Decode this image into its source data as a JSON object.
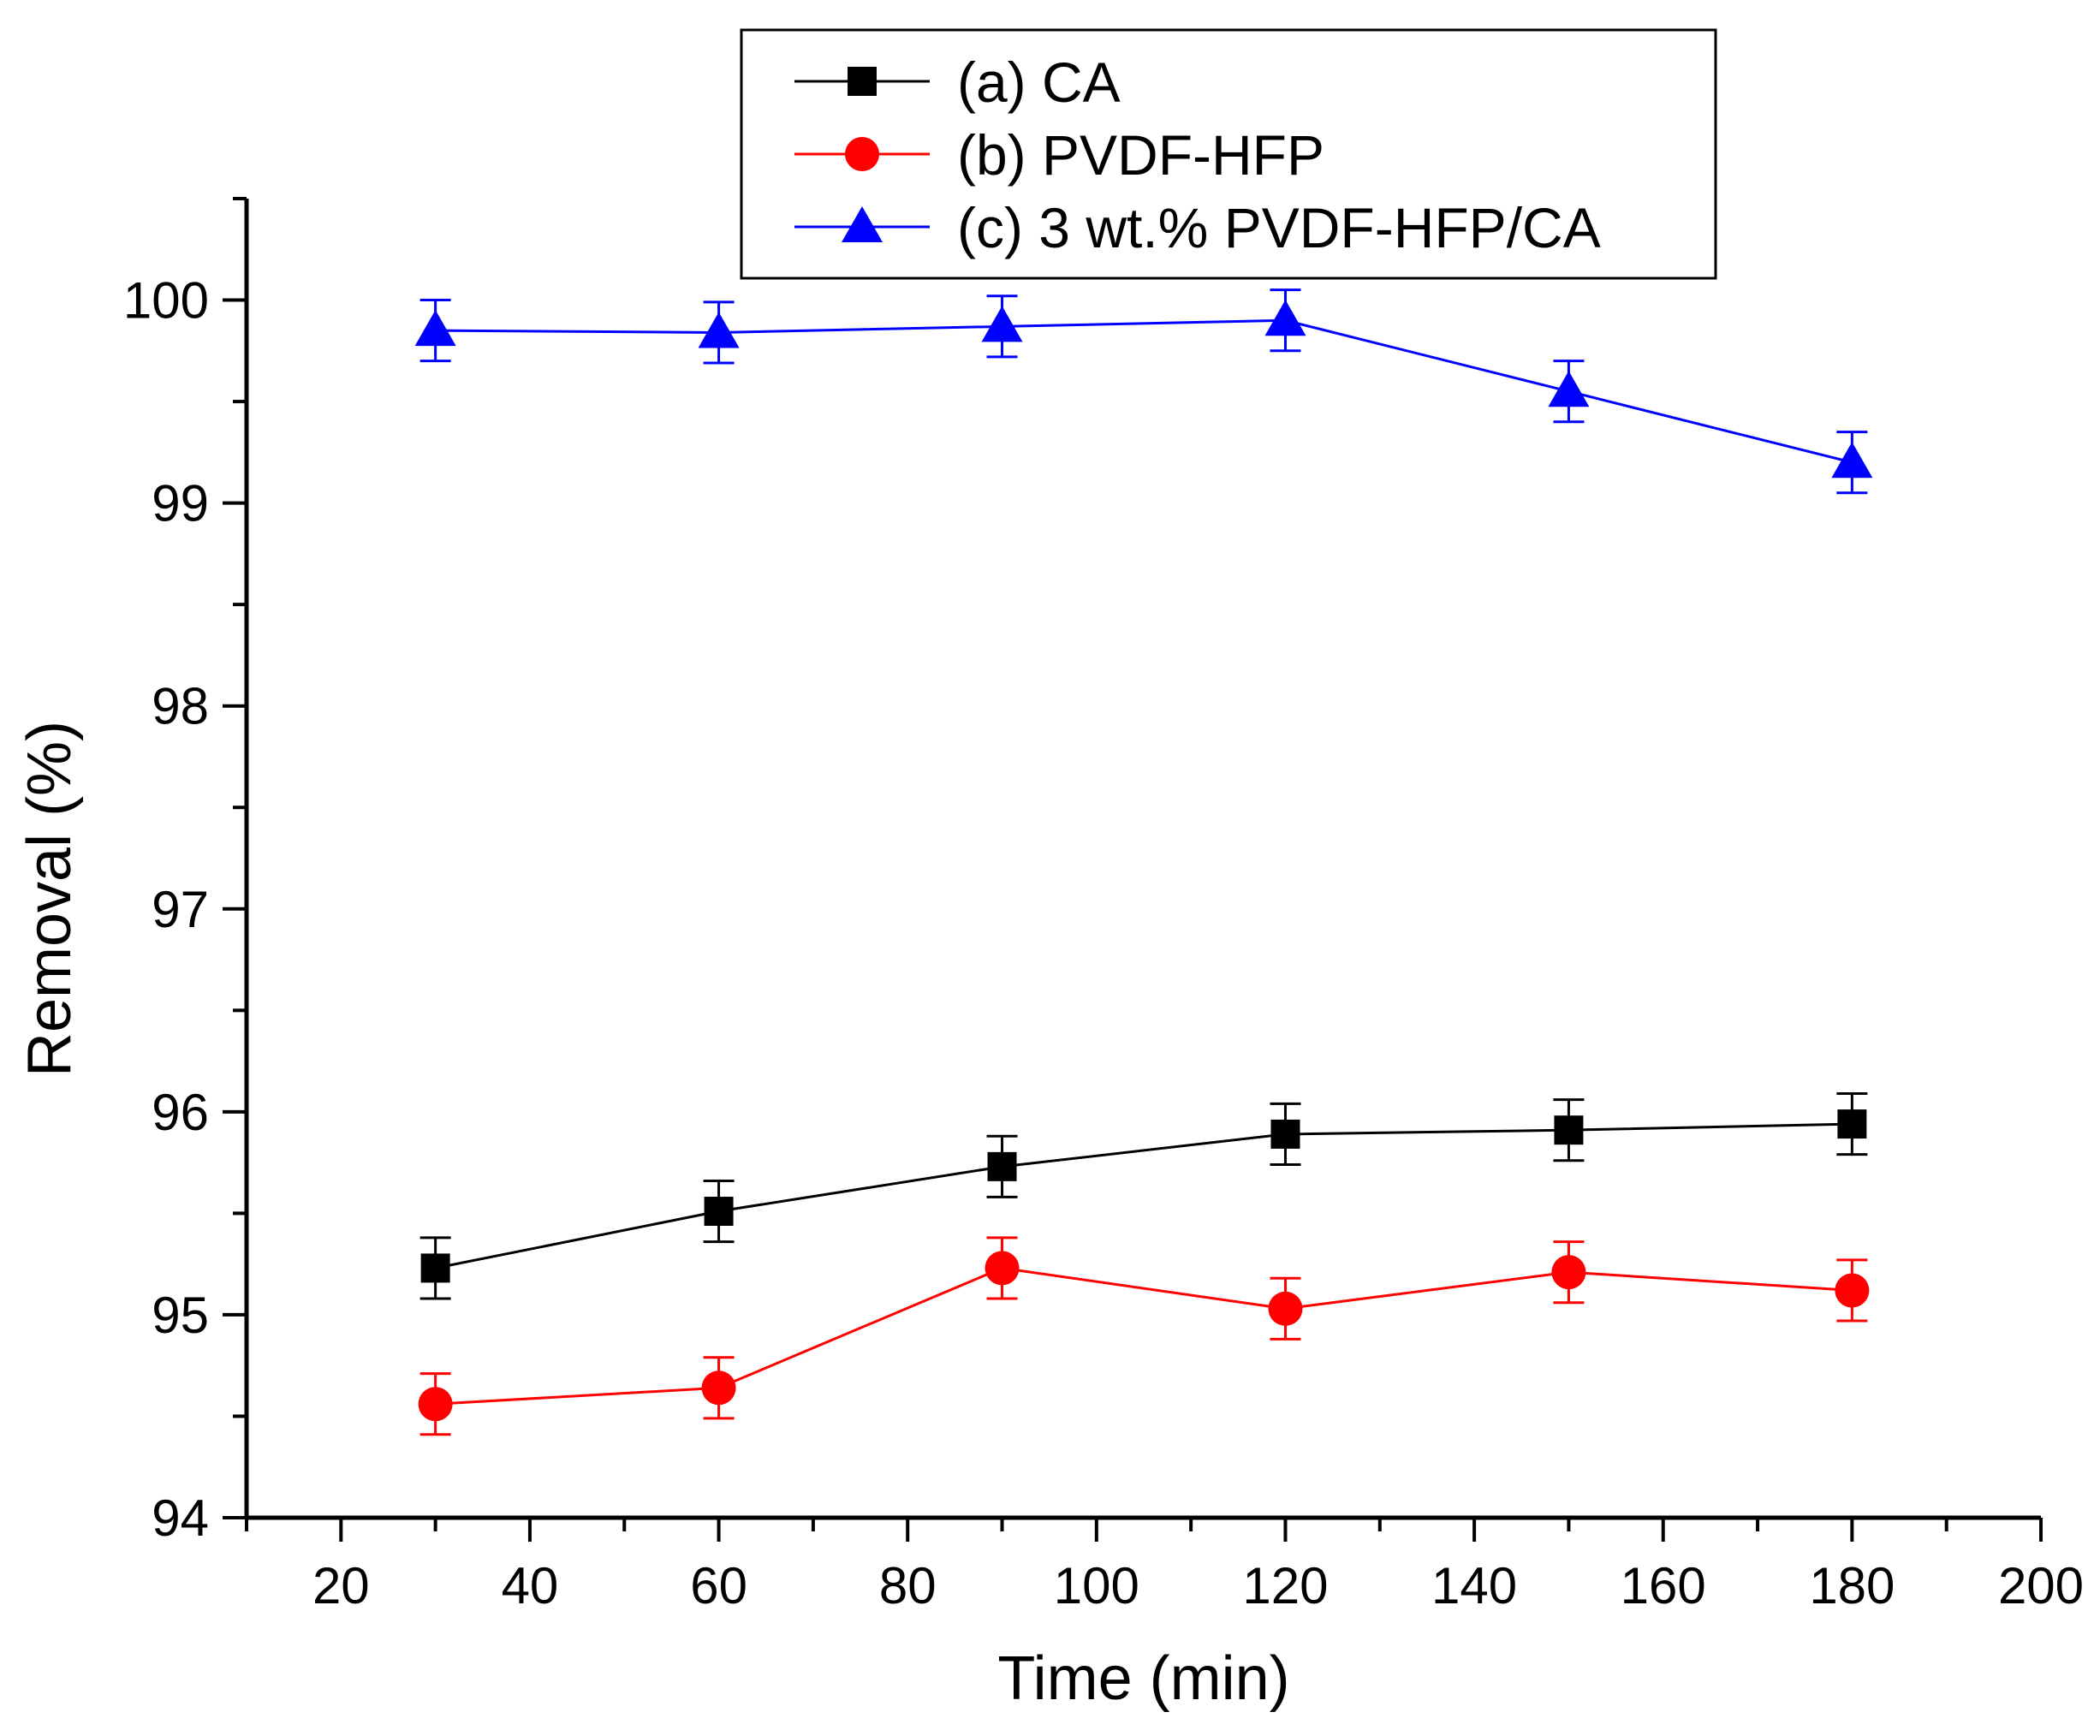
{
  "chart_data": {
    "type": "line",
    "title": "",
    "xlabel": "Time (min)",
    "ylabel": "Removal (%)",
    "xlim": [
      10,
      200
    ],
    "ylim": [
      94,
      100.5
    ],
    "xticks": [
      20,
      40,
      60,
      80,
      100,
      120,
      140,
      160,
      180,
      200
    ],
    "yticks": [
      94,
      95,
      96,
      97,
      98,
      99,
      100
    ],
    "legend_position": "top-center",
    "grid": false,
    "series": [
      {
        "name": "(a) CA",
        "color": "#000000",
        "marker": "square",
        "x": [
          30,
          60,
          90,
          120,
          150,
          180
        ],
        "y": [
          95.23,
          95.51,
          95.73,
          95.89,
          95.91,
          95.94
        ],
        "error": [
          0.15,
          0.15,
          0.15,
          0.15,
          0.15,
          0.15
        ]
      },
      {
        "name": "(b) PVDF-HFP",
        "color": "#ff0000",
        "marker": "circle",
        "x": [
          30,
          60,
          90,
          120,
          150,
          180
        ],
        "y": [
          94.56,
          94.64,
          95.23,
          95.03,
          95.21,
          95.12
        ],
        "error": [
          0.15,
          0.15,
          0.15,
          0.15,
          0.15,
          0.15
        ]
      },
      {
        "name": "(c) 3 wt.% PVDF-HFP/CA",
        "color": "#0000ff",
        "marker": "triangle",
        "x": [
          30,
          60,
          90,
          120,
          150,
          180
        ],
        "y": [
          99.85,
          99.84,
          99.87,
          99.9,
          99.55,
          99.2
        ],
        "error": [
          0.15,
          0.15,
          0.15,
          0.15,
          0.15,
          0.15
        ]
      }
    ]
  }
}
